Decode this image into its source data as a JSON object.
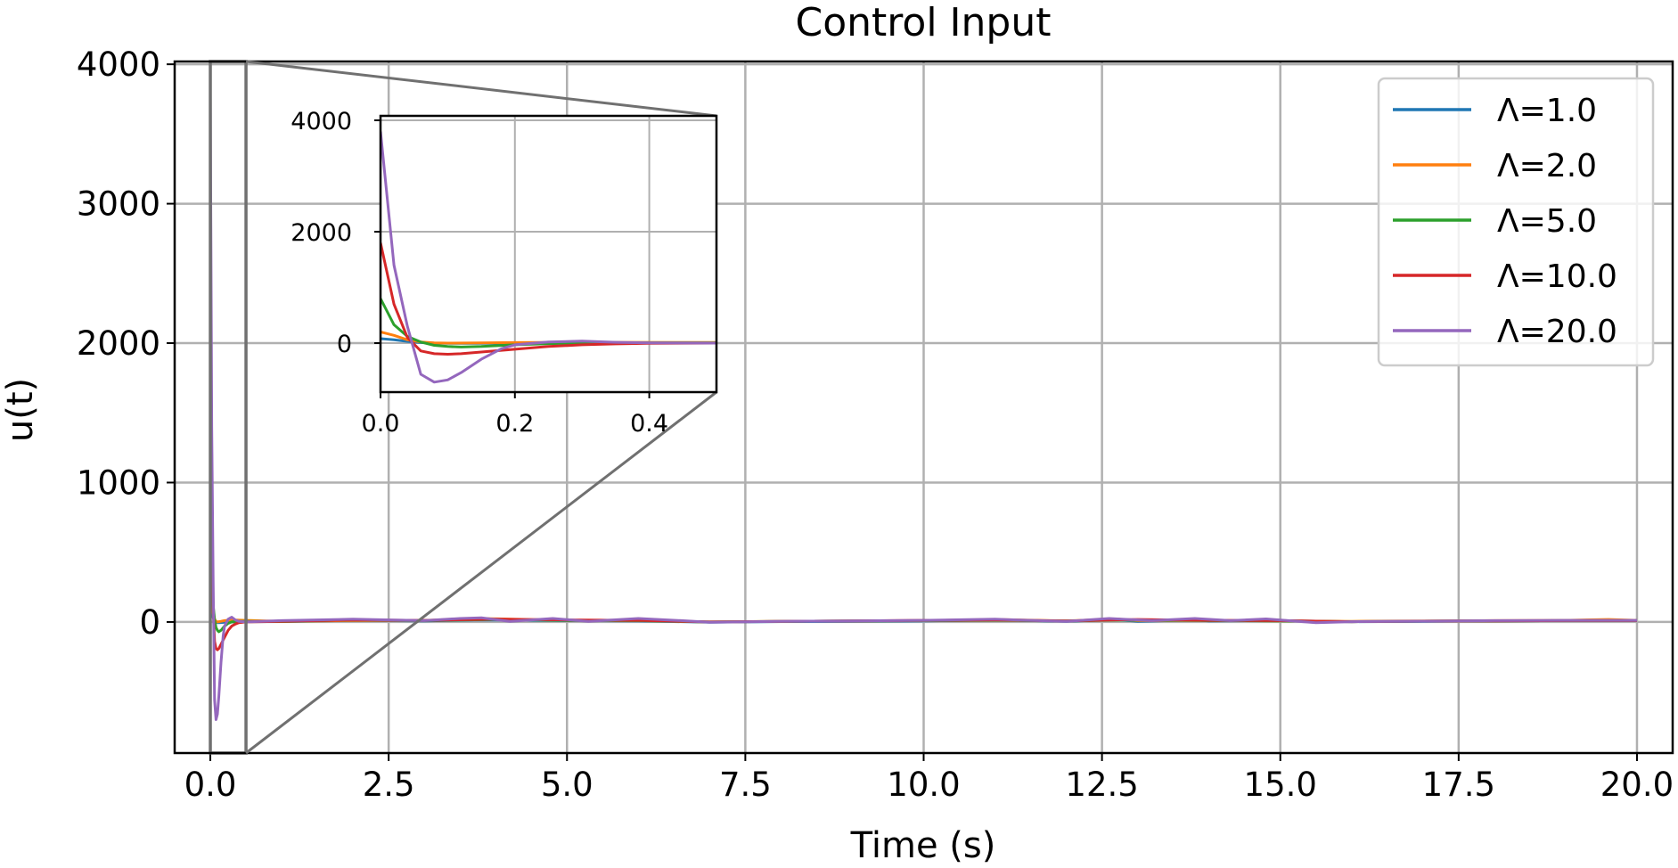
{
  "chart_data": {
    "type": "line",
    "title": "Control Input",
    "xlabel": "Time (s)",
    "ylabel": "u(t)",
    "xlim": [
      -0.5,
      20.5
    ],
    "ylim": [
      -940,
      4020
    ],
    "grid": true,
    "legend_position": "top-right",
    "x_ticks": [
      "0.0",
      "2.5",
      "5.0",
      "7.5",
      "10.0",
      "12.5",
      "15.0",
      "17.5",
      "20.0"
    ],
    "y_ticks": [
      "0",
      "1000",
      "2000",
      "3000",
      "4000"
    ],
    "series": [
      {
        "name": "Λ=1.0",
        "color": "#1f77b4",
        "x": [
          0,
          0.02,
          0.04,
          0.06,
          0.08,
          0.1,
          0.15,
          0.2,
          0.3,
          0.5,
          1.0,
          2.0,
          3.0,
          3.8,
          5.0,
          6.0,
          7.0,
          8.0,
          9.0,
          10.0,
          11.0,
          12.0,
          12.7,
          13.0,
          13.8,
          14.0,
          15.0,
          16.0,
          17.0,
          18.0,
          19.0,
          20.0
        ],
        "y": [
          80,
          60,
          30,
          10,
          0,
          -5,
          -4,
          -2,
          0,
          2,
          3,
          12,
          8,
          15,
          10,
          8,
          -2,
          3,
          5,
          8,
          15,
          5,
          18,
          5,
          15,
          8,
          10,
          2,
          5,
          8,
          10,
          10
        ]
      },
      {
        "name": "Λ=2.0",
        "color": "#ff7f0e",
        "x": [
          0,
          0.02,
          0.04,
          0.06,
          0.08,
          0.1,
          0.15,
          0.2,
          0.3,
          0.5,
          1.0,
          2.0,
          3.0,
          3.8,
          5.0,
          6.0,
          7.0,
          8.0,
          9.0,
          10.0,
          11.0,
          12.0,
          12.7,
          13.0,
          14.0,
          15.0,
          16.0,
          17.0,
          18.0,
          19.0,
          19.6,
          20.0
        ],
        "y": [
          200,
          140,
          60,
          20,
          5,
          0,
          5,
          10,
          15,
          12,
          5,
          10,
          12,
          25,
          12,
          10,
          0,
          5,
          8,
          10,
          18,
          8,
          22,
          10,
          12,
          8,
          5,
          8,
          10,
          12,
          18,
          12
        ]
      },
      {
        "name": "Λ=5.0",
        "color": "#2ca02c",
        "x": [
          0,
          0.02,
          0.04,
          0.06,
          0.08,
          0.1,
          0.12,
          0.15,
          0.2,
          0.25,
          0.3,
          0.4,
          0.5,
          1.0,
          2.0,
          3.0,
          4.0,
          5.0,
          6.0,
          7.0,
          8.0,
          9.0,
          10.0,
          11.0,
          12.0,
          13.0,
          14.0,
          15.0,
          16.0,
          17.0,
          18.0,
          19.0,
          20.0
        ],
        "y": [
          800,
          330,
          120,
          20,
          -40,
          -60,
          -70,
          -60,
          -30,
          -10,
          0,
          5,
          5,
          3,
          15,
          10,
          18,
          12,
          10,
          0,
          5,
          8,
          10,
          12,
          8,
          15,
          10,
          8,
          2,
          6,
          8,
          10,
          10
        ]
      },
      {
        "name": "Λ=10.0",
        "color": "#d62728",
        "x": [
          0,
          0.02,
          0.04,
          0.06,
          0.08,
          0.1,
          0.12,
          0.15,
          0.2,
          0.25,
          0.3,
          0.35,
          0.4,
          0.5,
          1.0,
          2.0,
          3.0,
          4.0,
          5.0,
          6.0,
          7.0,
          8.0,
          9.0,
          10.0,
          11.0,
          12.0,
          13.0,
          14.0,
          15.0,
          16.0,
          17.0,
          18.0,
          19.0,
          20.0
        ],
        "y": [
          1800,
          700,
          100,
          -140,
          -190,
          -200,
          -190,
          -160,
          -110,
          -60,
          -30,
          -15,
          -5,
          0,
          5,
          15,
          12,
          20,
          15,
          12,
          0,
          5,
          8,
          12,
          14,
          8,
          18,
          12,
          10,
          2,
          6,
          8,
          10,
          10
        ]
      },
      {
        "name": "Λ=20.0",
        "color": "#9467bd",
        "x": [
          0,
          0.02,
          0.04,
          0.06,
          0.08,
          0.1,
          0.12,
          0.15,
          0.18,
          0.2,
          0.25,
          0.3,
          0.35,
          0.4,
          0.5,
          0.7,
          1.0,
          1.5,
          2.0,
          2.5,
          3.0,
          3.5,
          3.8,
          4.2,
          4.8,
          5.3,
          6.0,
          6.6,
          7.0,
          8.0,
          9.0,
          10.0,
          11.0,
          11.5,
          12.0,
          12.6,
          13.2,
          13.8,
          14.3,
          14.8,
          15.5,
          16.0,
          17.0,
          18.0,
          19.0,
          20.0
        ],
        "y": [
          3800,
          1400,
          300,
          -560,
          -700,
          -660,
          -530,
          -290,
          -100,
          -30,
          20,
          35,
          15,
          5,
          0,
          5,
          10,
          15,
          20,
          15,
          10,
          25,
          30,
          5,
          25,
          5,
          25,
          10,
          -2,
          5,
          8,
          12,
          20,
          12,
          5,
          25,
          10,
          25,
          10,
          22,
          -5,
          2,
          6,
          10,
          12,
          12
        ]
      }
    ],
    "inset": {
      "xlim": [
        0,
        0.5
      ],
      "ylim": [
        -880,
        4080
      ],
      "x_ticks": [
        "0.0",
        "0.2",
        "0.4"
      ],
      "y_ticks": [
        "0",
        "2000",
        "4000"
      ],
      "zoom_region": {
        "x": [
          0,
          0.5
        ],
        "y": [
          -940,
          4020
        ]
      }
    }
  },
  "colors": {
    "grid": "#b0b0b0",
    "axes": "#000000",
    "zoom_lines": "#707070"
  }
}
